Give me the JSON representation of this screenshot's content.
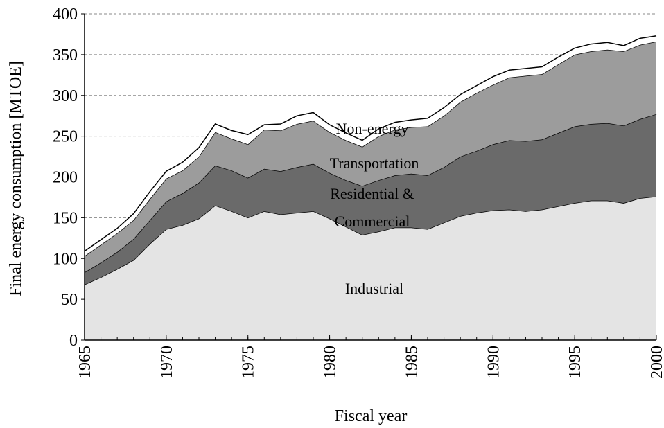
{
  "chart_data": {
    "type": "stacked_area",
    "xlabel": "Fiscal year",
    "ylabel": "Final energy consumption [MTOE]",
    "x": [
      1965,
      1966,
      1967,
      1968,
      1969,
      1970,
      1971,
      1972,
      1973,
      1974,
      1975,
      1976,
      1977,
      1978,
      1979,
      1980,
      1981,
      1982,
      1983,
      1984,
      1985,
      1986,
      1987,
      1988,
      1989,
      1990,
      1991,
      1992,
      1993,
      1994,
      1995,
      1996,
      1997,
      1998,
      1999,
      2000
    ],
    "series": [
      {
        "color": "#e4e4e4",
        "values": [
          68,
          77,
          87,
          98,
          118,
          136,
          141,
          149,
          165,
          158,
          150,
          158,
          154,
          156,
          158,
          149,
          139,
          129,
          133,
          138,
          138,
          136,
          144,
          152,
          156,
          159,
          160,
          158,
          160,
          164,
          168,
          171,
          171,
          168,
          174,
          176
        ]
      },
      {
        "color": "#6a6a6a",
        "values": [
          15,
          18,
          21,
          26,
          29,
          34,
          39,
          44,
          49,
          50,
          49,
          52,
          53,
          56,
          58,
          56,
          57,
          60,
          63,
          64,
          66,
          66,
          68,
          73,
          76,
          81,
          85,
          86,
          86,
          90,
          94,
          94,
          95,
          95,
          97,
          101
        ]
      },
      {
        "color": "#9c9c9c",
        "values": [
          20,
          22,
          23,
          23,
          26,
          28,
          28,
          32,
          41,
          39,
          41,
          48,
          50,
          53,
          53,
          50,
          49,
          48,
          54,
          56,
          57,
          60,
          63,
          67,
          71,
          73,
          77,
          80,
          80,
          84,
          88,
          89,
          90,
          91,
          91,
          89
        ]
      },
      {
        "color": "#ffffff",
        "values": [
          6,
          6,
          6,
          8,
          9,
          9,
          10,
          11,
          10,
          10,
          12,
          6,
          8,
          10,
          10,
          9,
          9,
          8,
          9,
          9,
          9,
          10,
          10,
          9,
          9,
          10,
          9,
          9,
          9,
          9,
          8,
          9,
          9,
          7,
          8,
          7
        ]
      }
    ],
    "annotations": [
      "Non-energy",
      "Transportation",
      "Residential &",
      "Commercial",
      "Industrial"
    ],
    "xlim": [
      1965,
      2000
    ],
    "xticks": [
      1965,
      1970,
      1975,
      1980,
      1985,
      1990,
      1995,
      2000
    ],
    "ylim": [
      0,
      400
    ],
    "yticks": [
      0,
      50,
      100,
      150,
      200,
      250,
      300,
      350,
      400
    ],
    "grid": true
  }
}
